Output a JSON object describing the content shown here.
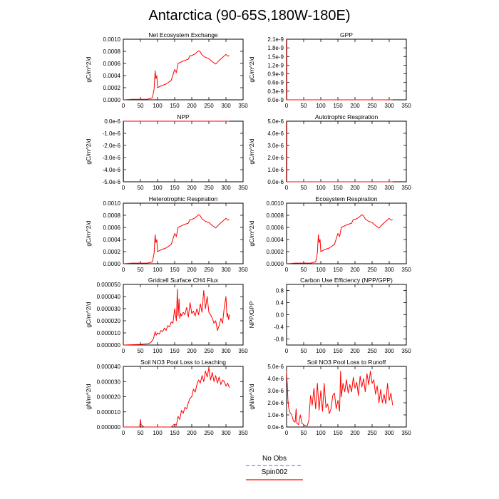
{
  "figure": {
    "title": "Antarctica (90-65S,180W-180E)",
    "legend": {
      "items": [
        {
          "label": "No Obs",
          "color": "#8080ff",
          "dash": true
        },
        {
          "label": "Spin002",
          "color": "#ff0000",
          "dash": false
        }
      ]
    }
  },
  "chart_data": [
    {
      "type": "line",
      "title": "Net Ecosystem Exchange",
      "ylabel": "gC/m^2/d",
      "xlim": [
        0,
        350
      ],
      "xticks": [
        "0",
        "50",
        "100",
        "150",
        "200",
        "250",
        "300",
        "350"
      ],
      "ylim": [
        0,
        0.001
      ],
      "yticks": [
        "0.0000",
        "0.0002",
        "0.0004",
        "0.0006",
        "0.0008",
        "0.0010"
      ],
      "grid": false,
      "series": [
        {
          "color": "#ff0000",
          "x": [
            0,
            25,
            50,
            70,
            85,
            90,
            93,
            95,
            98,
            100,
            110,
            125,
            140,
            150,
            155,
            160,
            175,
            185,
            190,
            195,
            200,
            210,
            220,
            225,
            230,
            240,
            250,
            260,
            270,
            280,
            290,
            300,
            305,
            310
          ],
          "y": [
            0,
            1e-05,
            1e-05,
            1e-05,
            3e-05,
            0.00018,
            0.00048,
            0.00035,
            0.0004,
            0.0002,
            0.00023,
            0.00026,
            0.00032,
            0.0005,
            0.00045,
            0.0006,
            0.00064,
            0.00066,
            0.00067,
            0.00073,
            0.00073,
            0.00076,
            0.00081,
            0.00079,
            0.00074,
            0.0007,
            0.00068,
            0.00063,
            0.00059,
            0.00065,
            0.0007,
            0.00075,
            0.00072,
            0.00073
          ]
        }
      ]
    },
    {
      "type": "line",
      "title": "GPP",
      "ylabel": "gC/m^2/d",
      "xlim": [
        0,
        350
      ],
      "xticks": [
        "0",
        "50",
        "100",
        "150",
        "200",
        "250",
        "300",
        "350"
      ],
      "ylim": [
        0,
        2.1e-09
      ],
      "yticks": [
        "0.0e-9",
        "0.3e-9",
        "0.6e-9",
        "0.9e-9",
        "1.2e-9",
        "1.5e-9",
        "1.8e-9",
        "2.1e-9"
      ],
      "grid": false,
      "series": [
        {
          "color": "#ff0000",
          "x": [
            1,
            1,
            2,
            310
          ],
          "y": [
            2.1e-09,
            0,
            0,
            0
          ]
        }
      ]
    },
    {
      "type": "line",
      "title": "NPP",
      "ylabel": "gC/m^2/d",
      "xlim": [
        0,
        350
      ],
      "xticks": [
        "0",
        "50",
        "100",
        "150",
        "200",
        "250",
        "300",
        "350"
      ],
      "ylim": [
        -5e-06,
        0
      ],
      "yticks": [
        "-5.0e-6",
        "-4.0e-6",
        "-3.0e-6",
        "-2.0e-6",
        "-1.0e-6",
        "0.0e-6"
      ],
      "grid": false,
      "series": [
        {
          "color": "#ff0000",
          "x": [
            1,
            1,
            2,
            310
          ],
          "y": [
            -5e-06,
            0,
            0,
            0
          ]
        }
      ]
    },
    {
      "type": "line",
      "title": "Autotrophic Respiration",
      "ylabel": "gC/m^2/d",
      "xlim": [
        0,
        350
      ],
      "xticks": [
        "0",
        "50",
        "100",
        "150",
        "200",
        "250",
        "300",
        "350"
      ],
      "ylim": [
        0,
        5e-06
      ],
      "yticks": [
        "0.0e-6",
        "1.0e-6",
        "2.0e-6",
        "3.0e-6",
        "4.0e-6",
        "5.0e-6"
      ],
      "grid": false,
      "series": [
        {
          "color": "#ff0000",
          "x": [
            1,
            1,
            2,
            310
          ],
          "y": [
            5e-06,
            0,
            0,
            0
          ]
        }
      ]
    },
    {
      "type": "line",
      "title": "Heterotrophic Respiration",
      "ylabel": "gC/m^2/d",
      "xlim": [
        0,
        350
      ],
      "xticks": [
        "0",
        "50",
        "100",
        "150",
        "200",
        "250",
        "300",
        "350"
      ],
      "ylim": [
        0,
        0.001
      ],
      "yticks": [
        "0.0000",
        "0.0002",
        "0.0004",
        "0.0006",
        "0.0008",
        "0.0010"
      ],
      "grid": false,
      "series": [
        {
          "color": "#ff0000",
          "x": [
            0,
            25,
            50,
            70,
            85,
            90,
            93,
            95,
            98,
            100,
            110,
            125,
            140,
            150,
            155,
            160,
            175,
            185,
            190,
            195,
            200,
            210,
            220,
            225,
            230,
            240,
            250,
            260,
            270,
            280,
            290,
            300,
            305,
            310
          ],
          "y": [
            0,
            1e-05,
            1e-05,
            1e-05,
            3e-05,
            0.00018,
            0.00048,
            0.00035,
            0.0004,
            0.0002,
            0.00023,
            0.00026,
            0.00032,
            0.0005,
            0.00045,
            0.0006,
            0.00064,
            0.00066,
            0.00067,
            0.00073,
            0.00073,
            0.00076,
            0.00081,
            0.00079,
            0.00074,
            0.0007,
            0.00068,
            0.00063,
            0.00059,
            0.00065,
            0.0007,
            0.00075,
            0.00072,
            0.00073
          ]
        }
      ]
    },
    {
      "type": "line",
      "title": "Ecosystem Respiration",
      "ylabel": "gC/m^2/d",
      "xlim": [
        0,
        350
      ],
      "xticks": [
        "0",
        "50",
        "100",
        "150",
        "200",
        "250",
        "300",
        "350"
      ],
      "ylim": [
        0,
        0.001
      ],
      "yticks": [
        "0.0000",
        "0.0002",
        "0.0004",
        "0.0006",
        "0.0008",
        "0.0010"
      ],
      "grid": false,
      "series": [
        {
          "color": "#ff0000",
          "x": [
            0,
            25,
            50,
            70,
            85,
            90,
            93,
            95,
            98,
            100,
            110,
            125,
            140,
            150,
            155,
            160,
            175,
            185,
            190,
            195,
            200,
            210,
            220,
            225,
            230,
            240,
            250,
            260,
            270,
            280,
            290,
            300,
            305,
            310
          ],
          "y": [
            0,
            1e-05,
            1e-05,
            1e-05,
            3e-05,
            0.00018,
            0.00048,
            0.00035,
            0.0004,
            0.0002,
            0.00023,
            0.00026,
            0.00032,
            0.0005,
            0.00045,
            0.0006,
            0.00064,
            0.00066,
            0.00067,
            0.00073,
            0.00073,
            0.00076,
            0.00081,
            0.00079,
            0.00074,
            0.0007,
            0.00068,
            0.00063,
            0.00059,
            0.00065,
            0.0007,
            0.00075,
            0.00072,
            0.00073
          ]
        }
      ]
    },
    {
      "type": "line",
      "title": "Gridcell Surface CH4 Flux",
      "ylabel": "gC/m^2/d",
      "xlim": [
        0,
        350
      ],
      "xticks": [
        "0",
        "50",
        "100",
        "150",
        "200",
        "250",
        "300",
        "350"
      ],
      "ylim": [
        0,
        5e-05
      ],
      "yticks": [
        "0.000000",
        "0.000010",
        "0.000020",
        "0.000030",
        "0.000040",
        "0.000050"
      ],
      "grid": false,
      "series": [
        {
          "color": "#ff0000",
          "x": [
            0,
            50,
            70,
            80,
            88,
            93,
            96,
            100,
            105,
            110,
            115,
            120,
            125,
            130,
            135,
            140,
            145,
            150,
            155,
            158,
            160,
            163,
            165,
            168,
            170,
            175,
            180,
            185,
            190,
            195,
            200,
            205,
            210,
            215,
            220,
            225,
            230,
            235,
            240,
            245,
            250,
            255,
            260,
            265,
            270,
            275,
            280,
            285,
            290,
            295,
            300,
            303,
            305,
            308,
            310
          ],
          "y": [
            0,
            5e-07,
            1e-06,
            2e-06,
            5e-06,
            1.1e-05,
            8e-06,
            1e-05,
            9e-06,
            1.2e-05,
            1.1e-05,
            1.4e-05,
            1.2e-05,
            1.6e-05,
            1.5e-05,
            1.9e-05,
            1.8e-05,
            3e-05,
            2e-05,
            4.6e-05,
            2.4e-05,
            3.8e-05,
            2.2e-05,
            2.6e-05,
            2.4e-05,
            2.7e-05,
            2.5e-05,
            3.1e-05,
            2.3e-05,
            3.5e-05,
            2.6e-05,
            2.8e-05,
            2.4e-05,
            3e-05,
            2.5e-05,
            3.4e-05,
            2.7e-05,
            4.5e-05,
            3e-05,
            4e-05,
            2.7e-05,
            2.5e-05,
            2.2e-05,
            1.8e-05,
            2e-05,
            1.2e-05,
            1.6e-05,
            2.2e-05,
            1.8e-05,
            3.1e-05,
            4e-05,
            2.3e-05,
            2.6e-05,
            2.1e-05,
            2.5e-05
          ]
        }
      ]
    },
    {
      "type": "line",
      "title": "Carbon Use Efficiency (NPP/GPP)",
      "ylabel": "NPP/GPP",
      "xlim": [
        0,
        350
      ],
      "xticks": [
        "0",
        "50",
        "100",
        "150",
        "200",
        "250",
        "300",
        "350"
      ],
      "ylim": [
        -1,
        1
      ],
      "yticks": [
        "-0.8",
        "-0.4",
        "0.0",
        "0.4",
        "0.8"
      ],
      "ytick_values": [
        -0.8,
        -0.4,
        0.0,
        0.4,
        0.8
      ],
      "grid": false,
      "series": []
    },
    {
      "type": "line",
      "title": "Soil NO3 Pool Loss to Leaching",
      "ylabel": "gN/m^2/d",
      "xlim": [
        0,
        350
      ],
      "xticks": [
        "0",
        "50",
        "100",
        "150",
        "200",
        "250",
        "300",
        "350"
      ],
      "ylim": [
        0,
        4e-05
      ],
      "yticks": [
        "0.000000",
        "0.000010",
        "0.000020",
        "0.000030",
        "0.000040"
      ],
      "grid": false,
      "series": [
        {
          "color": "#ff0000",
          "x": [
            0,
            48,
            50,
            52,
            55,
            60,
            100,
            140,
            150,
            155,
            160,
            165,
            170,
            175,
            180,
            185,
            190,
            195,
            200,
            205,
            210,
            215,
            220,
            225,
            230,
            235,
            240,
            245,
            250,
            255,
            260,
            265,
            270,
            275,
            280,
            285,
            290,
            295,
            300,
            305,
            310
          ],
          "y": [
            0,
            0,
            5e-06,
            1.5e-06,
            1e-06,
            0,
            0,
            0,
            2e-06,
            1e-06,
            7e-06,
            5e-06,
            1.1e-05,
            9e-06,
            1.3e-05,
            1.2e-05,
            1.6e-05,
            1.9e-05,
            2e-05,
            2.5e-05,
            2.3e-05,
            2.8e-05,
            3.1e-05,
            2.9e-05,
            3.4e-05,
            3e-05,
            3.7e-05,
            3.3e-05,
            3.9e-05,
            3.1e-05,
            3.6e-05,
            3e-05,
            3.4e-05,
            2.9e-05,
            3.3e-05,
            2.8e-05,
            3.1e-05,
            3e-05,
            2.7e-05,
            2.9e-05,
            2.6e-05
          ]
        }
      ]
    },
    {
      "type": "line",
      "title": "Soil NO3 Pool Loss to Runoff",
      "ylabel": "gN/m^2/d",
      "xlim": [
        0,
        350
      ],
      "xticks": [
        "0",
        "50",
        "100",
        "150",
        "200",
        "250",
        "300",
        "350"
      ],
      "ylim": [
        0,
        5e-06
      ],
      "yticks": [
        "0.0e-6",
        "1.0e-6",
        "2.0e-6",
        "3.0e-6",
        "4.0e-6",
        "5.0e-6"
      ],
      "grid": false,
      "series": [
        {
          "color": "#ff0000",
          "x": [
            0,
            2,
            4,
            6,
            8,
            10,
            15,
            20,
            25,
            28,
            30,
            35,
            40,
            45,
            50,
            55,
            60,
            65,
            70,
            75,
            80,
            85,
            90,
            95,
            100,
            105,
            110,
            115,
            120,
            125,
            130,
            135,
            140,
            145,
            150,
            155,
            158,
            160,
            165,
            170,
            175,
            180,
            185,
            190,
            195,
            200,
            205,
            210,
            215,
            220,
            225,
            230,
            235,
            240,
            245,
            250,
            255,
            260,
            265,
            270,
            275,
            280,
            285,
            290,
            295,
            300,
            305,
            310
          ],
          "y": [
            4.6e-06,
            3.5e-06,
            2.2e-06,
            1.6e-06,
            1.4e-06,
            1.2e-06,
            1e-06,
            5e-07,
            4e-07,
            1.5e-06,
            3e-07,
            2e-07,
            1e-06,
            3e-07,
            2e-07,
            1e-07,
            1e-07,
            5e-07,
            2.6e-06,
            1.8e-06,
            3.2e-06,
            1.5e-06,
            3.6e-06,
            1.4e-06,
            3e-06,
            1.3e-06,
            3.6e-06,
            1.6e-06,
            1.9e-06,
            1.1e-06,
            1.5e-06,
            2.6e-06,
            2.8e-06,
            1.5e-06,
            2.2e-06,
            1.3e-06,
            4.6e-06,
            2.5e-06,
            3.6e-06,
            2.9e-06,
            3.9e-06,
            2.8e-06,
            3.5e-06,
            2.9e-06,
            4.1e-06,
            3.2e-06,
            3.7e-06,
            2.6e-06,
            4.2e-06,
            3.3e-06,
            4e-06,
            2.9e-06,
            4.4e-06,
            3.5e-06,
            4.6e-06,
            3.6e-06,
            3.9e-06,
            2.7e-06,
            3.4e-06,
            2e-06,
            3.1e-06,
            2e-06,
            2.7e-06,
            1.9e-06,
            3.6e-06,
            2.2e-06,
            2.8e-06,
            1.8e-06
          ]
        }
      ]
    }
  ]
}
